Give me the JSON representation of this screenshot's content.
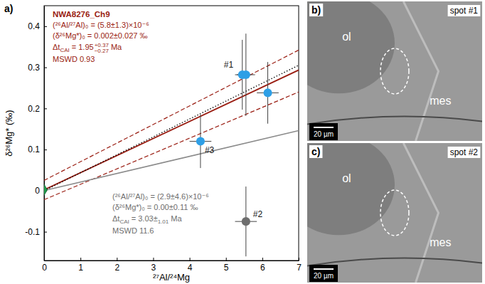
{
  "chart_data": {
    "type": "scatter",
    "panel_letter": "a)",
    "x_label": "²⁷Al/²⁴Mg",
    "y_label": "δ²⁶Mg* (‰)",
    "xlim": [
      0,
      7
    ],
    "ylim": [
      -0.17,
      0.45
    ],
    "xticks": [
      0,
      1,
      2,
      3,
      4,
      5,
      6,
      7
    ],
    "yticks": [
      -0.1,
      0,
      0.1,
      0.2,
      0.3,
      0.4
    ],
    "grid": false,
    "series": [
      {
        "type": "line",
        "color": "#9a1d12",
        "line_style": "solid",
        "x": [
          0,
          7
        ],
        "values": [
          0.002,
          0.2934
        ]
      },
      {
        "type": "line",
        "color": "#9a1d12",
        "line_style": "dashed",
        "x": [
          0,
          7
        ],
        "values": [
          0.025,
          0.342
        ]
      },
      {
        "type": "line",
        "color": "#9a1d12",
        "line_style": "dashed",
        "x": [
          0,
          7
        ],
        "values": [
          -0.022,
          0.24
        ]
      },
      {
        "type": "line",
        "color": "#000000",
        "line_style": "dotted",
        "x": [
          0,
          7
        ],
        "values": [
          0,
          0.305
        ]
      },
      {
        "type": "line",
        "color": "#8a8a8a",
        "line_style": "solid",
        "x": [
          0,
          7
        ],
        "values": [
          0,
          0.146
        ]
      },
      {
        "type": "scatter",
        "color": "#6e6e6e",
        "marker": "circle",
        "x": [
          5.55
        ],
        "values": [
          -0.075
        ],
        "x_err": [
          0.3
        ],
        "y_err": [
          0.085
        ],
        "point_labels": [
          "#2"
        ]
      },
      {
        "type": "scatter",
        "color": "#2e9fe6",
        "marker": "circle",
        "x": [
          4.3,
          5.45,
          5.55,
          6.15
        ],
        "values": [
          0.12,
          0.282,
          0.282,
          0.238
        ],
        "x_err": [
          0.3,
          0.2,
          0.25,
          0.3
        ],
        "y_err": [
          0.065,
          0.085,
          0.1,
          0.075
        ],
        "point_labels": [
          "#3",
          "#1",
          null,
          null
        ]
      },
      {
        "type": "scatter",
        "color": "#1f9a4a",
        "marker": "diamond",
        "x": [
          0
        ],
        "values": [
          0.002
        ]
      }
    ],
    "annotations": [
      {
        "color": "#9a1d12",
        "title": "NWA8276_Ch9",
        "lines": [
          "(²⁶Al/²⁷Al)₀ = (5.8±1.3)×10⁻⁶",
          "(δ²⁶Mg*)₀ = 0.002±0.027 ‰",
          {
            "symbol": "Δt",
            "subscript": "CAI",
            "value": "= 1.95",
            "upper": "+0.37",
            "lower": "−0.27",
            "unit": "Ma"
          },
          "MSWD 0.93"
        ]
      },
      {
        "color": "#6e6e6e",
        "lines": [
          "(²⁶Al/²⁷Al)₀ = (2.9±4.6)×10⁻⁶",
          "(δ²⁶Mg*)₀ = 0.00±0.11 ‰",
          {
            "symbol": "Δt",
            "subscript": "CAI",
            "value": "= 3.03±",
            "lower": "1.01",
            "unit": "Ma"
          },
          "MSWD 11.6"
        ]
      }
    ]
  },
  "images": [
    {
      "letter": "b)",
      "label": "spot #1",
      "phases": [
        "ol",
        "mes"
      ],
      "scale_bar": "20 µm"
    },
    {
      "letter": "c)",
      "label": "spot #2",
      "phases": [
        "ol",
        "mes"
      ],
      "scale_bar": "20 µm"
    }
  ]
}
